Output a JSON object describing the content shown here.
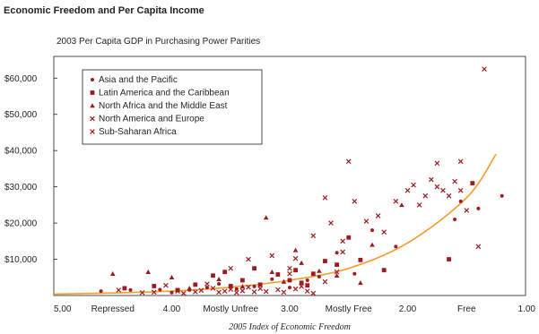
{
  "chart_data": {
    "type": "scatter",
    "title": "Economic Freedom and Per Capita Income",
    "subtitle": "2003 Per Capita GDP in Purchasing Power Parities",
    "xlabel": "2005 Index of Economic Freedom",
    "ylabel": "",
    "xlim": [
      5.0,
      1.0
    ],
    "ylim": [
      0,
      66000
    ],
    "x_reversed": true,
    "x_ticks": [
      {
        "value": 5.0,
        "label": "5,00"
      },
      {
        "value": 4.5,
        "label": "Repressed"
      },
      {
        "value": 4.0,
        "label": "4.00"
      },
      {
        "value": 3.5,
        "label": "Mostly Unfree"
      },
      {
        "value": 3.0,
        "label": "3.00"
      },
      {
        "value": 2.5,
        "label": "Mostly Free"
      },
      {
        "value": 2.0,
        "label": "2.00"
      },
      {
        "value": 1.5,
        "label": "Free"
      },
      {
        "value": 1.0,
        "label": "1.00"
      }
    ],
    "y_ticks": [
      {
        "value": 10000,
        "label": "$10,000"
      },
      {
        "value": 20000,
        "label": "$20,000"
      },
      {
        "value": 30000,
        "label": "$30,000"
      },
      {
        "value": 40000,
        "label": "$40,000"
      },
      {
        "value": 50000,
        "label": "$50,000"
      },
      {
        "value": 60000,
        "label": "$60,000"
      }
    ],
    "grid": false,
    "legend_position": "top-left",
    "marker_color": "#9e1b20",
    "trend_color": "#f39c2a",
    "trend": {
      "type": "exponential",
      "points": [
        [
          5.0,
          400
        ],
        [
          4.5,
          700
        ],
        [
          4.0,
          1200
        ],
        [
          3.5,
          2300
        ],
        [
          3.0,
          4200
        ],
        [
          2.5,
          7500
        ],
        [
          2.0,
          14500
        ],
        [
          1.5,
          27000
        ],
        [
          1.25,
          39000
        ]
      ]
    },
    "series": [
      {
        "name": "Asia and the Pacific",
        "marker": "circle",
        "points": [
          [
            4.6,
            1200
          ],
          [
            4.35,
            1500
          ],
          [
            4.1,
            1600
          ],
          [
            4.0,
            800
          ],
          [
            3.85,
            1500
          ],
          [
            3.7,
            2200
          ],
          [
            3.6,
            3200
          ],
          [
            3.45,
            1800
          ],
          [
            3.3,
            2500
          ],
          [
            3.15,
            4500
          ],
          [
            3.0,
            2200
          ],
          [
            2.85,
            4200
          ],
          [
            2.75,
            5200
          ],
          [
            2.6,
            11800
          ],
          [
            2.45,
            6000
          ],
          [
            2.3,
            18000
          ],
          [
            2.1,
            13500
          ],
          [
            1.6,
            21000
          ],
          [
            1.4,
            24000
          ],
          [
            1.55,
            26000
          ],
          [
            1.2,
            27500
          ]
        ]
      },
      {
        "name": "Latin America and the Caribbean",
        "marker": "square",
        "points": [
          [
            4.4,
            2000
          ],
          [
            4.15,
            2600
          ],
          [
            3.95,
            1500
          ],
          [
            3.8,
            3000
          ],
          [
            3.65,
            5500
          ],
          [
            3.55,
            6500
          ],
          [
            3.5,
            2600
          ],
          [
            3.4,
            4200
          ],
          [
            3.3,
            7500
          ],
          [
            3.25,
            3000
          ],
          [
            3.1,
            5800
          ],
          [
            3.0,
            4200
          ],
          [
            2.95,
            7000
          ],
          [
            2.9,
            3500
          ],
          [
            2.85,
            2800
          ],
          [
            2.8,
            6000
          ],
          [
            2.7,
            9500
          ],
          [
            2.6,
            8500
          ],
          [
            2.5,
            16000
          ],
          [
            2.4,
            9800
          ],
          [
            2.2,
            7000
          ],
          [
            1.65,
            10000
          ],
          [
            1.45,
            31000
          ]
        ]
      },
      {
        "name": "North Africa and the Middle East",
        "marker": "triangle",
        "points": [
          [
            4.5,
            6000
          ],
          [
            4.2,
            6500
          ],
          [
            4.0,
            5000
          ],
          [
            3.85,
            2000
          ],
          [
            3.6,
            4500
          ],
          [
            3.4,
            2500
          ],
          [
            3.2,
            21500
          ],
          [
            3.15,
            6500
          ],
          [
            3.05,
            3800
          ],
          [
            2.95,
            12500
          ],
          [
            2.9,
            9000
          ],
          [
            2.75,
            6800
          ],
          [
            2.6,
            5500
          ],
          [
            2.4,
            3500
          ],
          [
            2.3,
            14000
          ],
          [
            2.05,
            25000
          ]
        ]
      },
      {
        "name": "North America and Europe",
        "marker": "x",
        "points": [
          [
            3.7,
            3200
          ],
          [
            3.5,
            7500
          ],
          [
            3.35,
            10000
          ],
          [
            3.15,
            11000
          ],
          [
            3.0,
            6000
          ],
          [
            2.95,
            10200
          ],
          [
            2.8,
            16500
          ],
          [
            2.7,
            27000
          ],
          [
            2.65,
            20000
          ],
          [
            2.55,
            15000
          ],
          [
            2.45,
            26000
          ],
          [
            2.5,
            37000
          ],
          [
            2.35,
            20500
          ],
          [
            2.25,
            22000
          ],
          [
            2.2,
            17500
          ],
          [
            2.1,
            26000
          ],
          [
            2.0,
            29000
          ],
          [
            1.95,
            30500
          ],
          [
            1.9,
            25000
          ],
          [
            1.85,
            27500
          ],
          [
            1.8,
            32000
          ],
          [
            1.75,
            30000
          ],
          [
            1.7,
            29000
          ],
          [
            1.65,
            27500
          ],
          [
            1.6,
            31500
          ],
          [
            1.55,
            29000
          ],
          [
            1.5,
            23500
          ],
          [
            1.75,
            36500
          ],
          [
            1.55,
            37000
          ],
          [
            1.35,
            62500
          ],
          [
            1.4,
            13500
          ]
        ]
      },
      {
        "name": "Sub-Saharan Africa",
        "marker": "x",
        "points": [
          [
            4.45,
            1500
          ],
          [
            4.25,
            800
          ],
          [
            4.15,
            900
          ],
          [
            4.05,
            2800
          ],
          [
            3.95,
            1200
          ],
          [
            3.9,
            600
          ],
          [
            3.8,
            1000
          ],
          [
            3.75,
            1400
          ],
          [
            3.65,
            2000
          ],
          [
            3.6,
            900
          ],
          [
            3.55,
            1200
          ],
          [
            3.5,
            1700
          ],
          [
            3.45,
            800
          ],
          [
            3.4,
            1300
          ],
          [
            3.35,
            2300
          ],
          [
            3.3,
            1000
          ],
          [
            3.25,
            1900
          ],
          [
            3.2,
            1100
          ],
          [
            3.1,
            1600
          ],
          [
            3.05,
            900
          ],
          [
            3.0,
            7500
          ],
          [
            2.95,
            1800
          ],
          [
            2.9,
            2500
          ],
          [
            2.85,
            1200
          ],
          [
            2.8,
            600
          ],
          [
            2.7,
            3800
          ],
          [
            2.6,
            6500
          ],
          [
            2.55,
            12000
          ]
        ]
      }
    ]
  }
}
